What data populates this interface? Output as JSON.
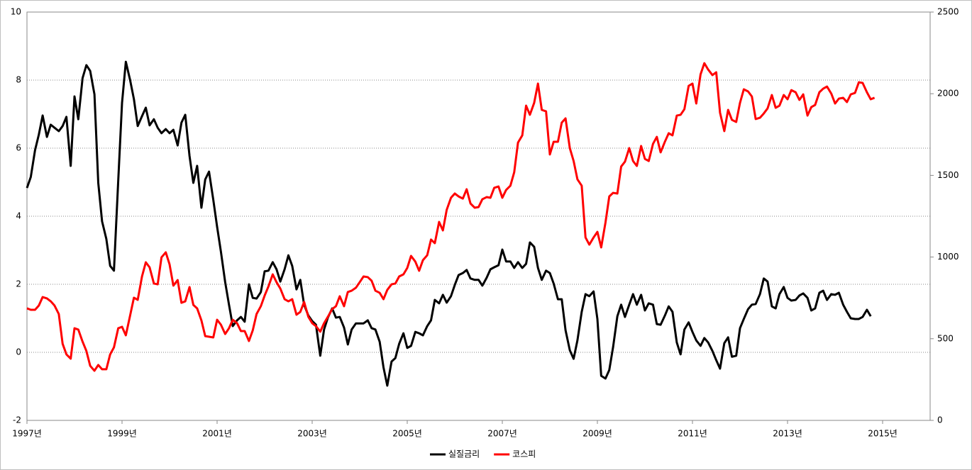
{
  "chart_data": {
    "type": "line",
    "x": [
      1997.0,
      1997.08,
      1997.17,
      1997.25,
      1997.33,
      1997.42,
      1997.5,
      1997.58,
      1997.67,
      1997.75,
      1997.83,
      1997.92,
      1998.0,
      1998.08,
      1998.17,
      1998.25,
      1998.33,
      1998.42,
      1998.5,
      1998.58,
      1998.67,
      1998.75,
      1998.83,
      1998.92,
      1999.0,
      1999.08,
      1999.17,
      1999.25,
      1999.33,
      1999.42,
      1999.5,
      1999.58,
      1999.67,
      1999.75,
      1999.83,
      1999.92,
      2000.0,
      2000.08,
      2000.17,
      2000.25,
      2000.33,
      2000.42,
      2000.5,
      2000.58,
      2000.67,
      2000.75,
      2000.83,
      2000.92,
      2001.0,
      2001.08,
      2001.17,
      2001.25,
      2001.33,
      2001.42,
      2001.5,
      2001.58,
      2001.67,
      2001.75,
      2001.83,
      2001.92,
      2002.0,
      2002.08,
      2002.17,
      2002.25,
      2002.33,
      2002.42,
      2002.5,
      2002.58,
      2002.67,
      2002.75,
      2002.83,
      2002.92,
      2003.0,
      2003.08,
      2003.17,
      2003.25,
      2003.33,
      2003.42,
      2003.5,
      2003.58,
      2003.67,
      2003.75,
      2003.83,
      2003.92,
      2004.0,
      2004.08,
      2004.17,
      2004.25,
      2004.33,
      2004.42,
      2004.5,
      2004.58,
      2004.67,
      2004.75,
      2004.83,
      2004.92,
      2005.0,
      2005.08,
      2005.17,
      2005.25,
      2005.33,
      2005.42,
      2005.5,
      2005.58,
      2005.67,
      2005.75,
      2005.83,
      2005.92,
      2006.0,
      2006.08,
      2006.17,
      2006.25,
      2006.33,
      2006.42,
      2006.5,
      2006.58,
      2006.67,
      2006.75,
      2006.83,
      2006.92,
      2007.0,
      2007.08,
      2007.17,
      2007.25,
      2007.33,
      2007.42,
      2007.5,
      2007.58,
      2007.67,
      2007.75,
      2007.83,
      2007.92,
      2008.0,
      2008.08,
      2008.17,
      2008.25,
      2008.33,
      2008.42,
      2008.5,
      2008.58,
      2008.67,
      2008.75,
      2008.83,
      2008.92,
      2009.0,
      2009.08,
      2009.17,
      2009.25,
      2009.33,
      2009.42,
      2009.5,
      2009.58,
      2009.67,
      2009.75,
      2009.83,
      2009.92,
      2010.0,
      2010.08,
      2010.17,
      2010.25,
      2010.33,
      2010.42,
      2010.5,
      2010.58,
      2010.67,
      2010.75,
      2010.83,
      2010.92,
      2011.0,
      2011.08,
      2011.17,
      2011.25,
      2011.33,
      2011.42,
      2011.5,
      2011.58,
      2011.67,
      2011.75,
      2011.83,
      2011.92,
      2012.0,
      2012.08,
      2012.17,
      2012.25,
      2012.33,
      2012.42,
      2012.5,
      2012.58,
      2012.67,
      2012.75,
      2012.83,
      2012.92,
      2013.0,
      2013.08,
      2013.17,
      2013.25,
      2013.33,
      2013.42,
      2013.5,
      2013.58,
      2013.67,
      2013.75,
      2013.83,
      2013.92,
      2014.0,
      2014.08,
      2014.17,
      2014.25,
      2014.33,
      2014.42,
      2014.5,
      2014.58,
      2014.67,
      2014.75,
      2014.83
    ],
    "series": [
      {
        "name": "실질금리",
        "color": "#000000",
        "values": [
          4.83,
          5.15,
          5.94,
          6.4,
          6.96,
          6.33,
          6.69,
          6.6,
          6.5,
          6.65,
          6.92,
          5.48,
          7.52,
          6.85,
          8.06,
          8.44,
          8.27,
          7.58,
          4.98,
          3.85,
          3.33,
          2.54,
          2.4,
          5.04,
          7.33,
          8.54,
          8.0,
          7.44,
          6.65,
          6.94,
          7.19,
          6.67,
          6.85,
          6.6,
          6.44,
          6.56,
          6.44,
          6.54,
          6.08,
          6.75,
          6.98,
          5.77,
          4.98,
          5.48,
          4.25,
          5.08,
          5.31,
          4.48,
          3.69,
          2.96,
          2.06,
          1.4,
          0.77,
          0.94,
          1.04,
          0.9,
          2.0,
          1.6,
          1.58,
          1.77,
          2.38,
          2.4,
          2.65,
          2.44,
          2.08,
          2.44,
          2.85,
          2.54,
          1.85,
          2.13,
          1.4,
          1.08,
          0.92,
          0.81,
          -0.1,
          0.67,
          1.02,
          1.29,
          1.02,
          1.04,
          0.73,
          0.23,
          0.67,
          0.85,
          0.85,
          0.85,
          0.94,
          0.71,
          0.67,
          0.31,
          -0.44,
          -0.98,
          -0.27,
          -0.17,
          0.25,
          0.56,
          0.13,
          0.19,
          0.6,
          0.56,
          0.5,
          0.77,
          0.94,
          1.54,
          1.44,
          1.69,
          1.46,
          1.65,
          1.98,
          2.27,
          2.33,
          2.42,
          2.17,
          2.13,
          2.13,
          1.96,
          2.19,
          2.44,
          2.5,
          2.56,
          3.02,
          2.67,
          2.67,
          2.48,
          2.65,
          2.48,
          2.6,
          3.23,
          3.1,
          2.48,
          2.13,
          2.4,
          2.33,
          2.02,
          1.56,
          1.56,
          0.65,
          0.06,
          -0.19,
          0.35,
          1.19,
          1.71,
          1.65,
          1.79,
          0.98,
          -0.69,
          -0.77,
          -0.52,
          0.15,
          1.06,
          1.4,
          1.04,
          1.4,
          1.71,
          1.4,
          1.69,
          1.23,
          1.44,
          1.4,
          0.83,
          0.81,
          1.08,
          1.35,
          1.19,
          0.29,
          -0.06,
          0.67,
          0.88,
          0.6,
          0.35,
          0.19,
          0.42,
          0.29,
          0.04,
          -0.23,
          -0.48,
          0.27,
          0.44,
          -0.13,
          -0.1,
          0.71,
          0.98,
          1.27,
          1.4,
          1.42,
          1.71,
          2.17,
          2.08,
          1.35,
          1.29,
          1.71,
          1.92,
          1.6,
          1.52,
          1.54,
          1.67,
          1.73,
          1.6,
          1.23,
          1.29,
          1.75,
          1.81,
          1.54,
          1.71,
          1.69,
          1.75,
          1.4,
          1.19,
          1.0,
          0.98,
          0.98,
          1.04,
          1.25,
          1.06,
          null
        ]
      },
      {
        "name": "코스피",
        "color": "#ff0000",
        "axis": "y2",
        "values": [
          686,
          677,
          677,
          703,
          755,
          747,
          729,
          703,
          651,
          469,
          404,
          378,
          564,
          556,
          482,
          425,
          334,
          304,
          339,
          313,
          313,
          404,
          447,
          564,
          573,
          521,
          642,
          751,
          738,
          881,
          968,
          937,
          838,
          833,
          998,
          1029,
          955,
          825,
          859,
          720,
          729,
          816,
          707,
          686,
          612,
          516,
          512,
          508,
          616,
          586,
          529,
          564,
          616,
          595,
          547,
          547,
          486,
          551,
          651,
          699,
          764,
          820,
          894,
          846,
          807,
          742,
          729,
          742,
          647,
          664,
          725,
          634,
          595,
          577,
          543,
          595,
          634,
          681,
          699,
          760,
          699,
          786,
          794,
          812,
          846,
          881,
          877,
          855,
          794,
          781,
          742,
          799,
          833,
          838,
          881,
          894,
          933,
          1007,
          972,
          916,
          981,
          1011,
          1107,
          1085,
          1215,
          1163,
          1289,
          1363,
          1389,
          1371,
          1358,
          1415,
          1328,
          1302,
          1306,
          1354,
          1367,
          1363,
          1424,
          1432,
          1363,
          1411,
          1437,
          1519,
          1701,
          1745,
          1927,
          1871,
          1944,
          2062,
          1901,
          1892,
          1628,
          1706,
          1706,
          1823,
          1849,
          1667,
          1588,
          1476,
          1437,
          1120,
          1076,
          1120,
          1154,
          1059,
          1211,
          1371,
          1393,
          1389,
          1554,
          1584,
          1667,
          1588,
          1558,
          1680,
          1601,
          1588,
          1693,
          1736,
          1641,
          1706,
          1758,
          1745,
          1866,
          1871,
          1905,
          2048,
          2062,
          1940,
          2118,
          2187,
          2148,
          2114,
          2131,
          1884,
          1771,
          1901,
          1840,
          1827,
          1944,
          2027,
          2014,
          1983,
          1845,
          1853,
          1879,
          1910,
          1992,
          1914,
          1927,
          1992,
          1966,
          2022,
          2009,
          1962,
          1996,
          1866,
          1918,
          1931,
          2009,
          2031,
          2044,
          2001,
          1940,
          1970,
          1975,
          1949,
          1996,
          2005,
          2070,
          2066,
          2009,
          1966,
          1975
        ]
      }
    ],
    "xlim": [
      1997,
      2016
    ],
    "xticks": [
      {
        "value": 1997,
        "label": "1997년"
      },
      {
        "value": 1999,
        "label": "1999년"
      },
      {
        "value": 2001,
        "label": "2001년"
      },
      {
        "value": 2003,
        "label": "2003년"
      },
      {
        "value": 2005,
        "label": "2005년"
      },
      {
        "value": 2007,
        "label": "2007년"
      },
      {
        "value": 2009,
        "label": "2009년"
      },
      {
        "value": 2011,
        "label": "2011년"
      },
      {
        "value": 2013,
        "label": "2013년"
      },
      {
        "value": 2015,
        "label": "2015년"
      }
    ],
    "ylim": [
      -2,
      10
    ],
    "yticks": [
      -2,
      0,
      2,
      4,
      6,
      8,
      10
    ],
    "y2lim": [
      0,
      2500
    ],
    "y2ticks": [
      0,
      500,
      1000,
      1500,
      2000,
      2500
    ],
    "grid": true,
    "legend": "bottom"
  }
}
